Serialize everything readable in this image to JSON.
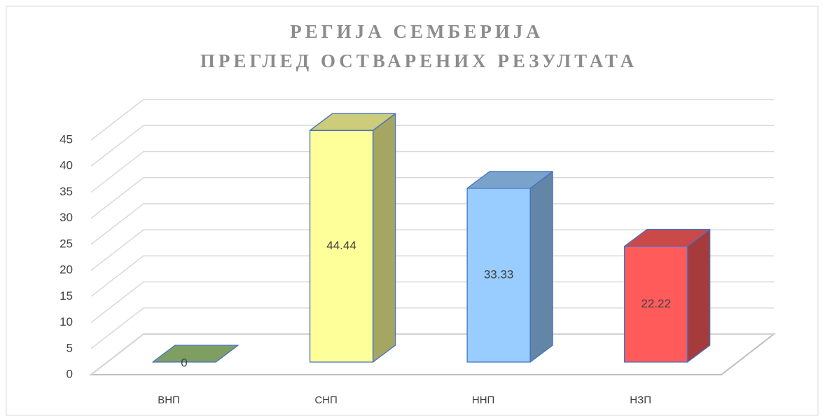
{
  "chart_data": {
    "type": "bar3d",
    "title": [
      "РЕГИЈА СЕМБЕРИЈА",
      "ПРЕГЛЕД ОСТВАРЕНИХ РЕЗУЛТАТА"
    ],
    "categories": [
      "ВНП",
      "СНП",
      "ННП",
      "НЗП"
    ],
    "values": [
      0,
      44.44,
      33.33,
      22.22
    ],
    "colors": [
      "#7f9f62",
      "#ffff99",
      "#99ccff",
      "#ff5b5b"
    ],
    "ylim": [
      0,
      45
    ],
    "yticks": [
      0,
      5,
      10,
      15,
      20,
      25,
      30,
      35,
      40,
      45
    ],
    "grid": true
  }
}
